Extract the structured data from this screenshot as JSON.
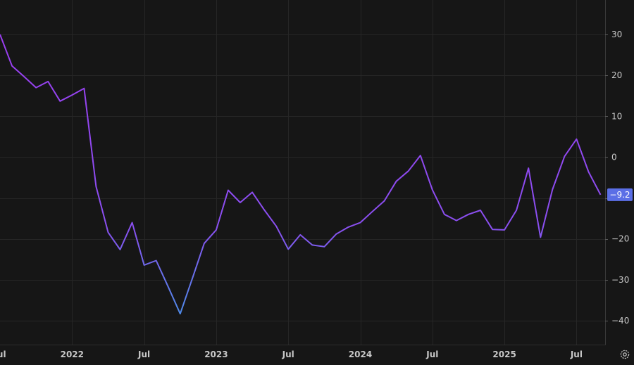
{
  "chart_data": {
    "type": "line",
    "title": "",
    "xlabel": "",
    "ylabel": "",
    "ylim": [
      -45,
      38
    ],
    "y_ticks": [
      30,
      20,
      10,
      0,
      -10,
      -20,
      -30,
      -40
    ],
    "y_tick_labels": [
      "30",
      "20",
      "10",
      "0",
      "",
      "−20",
      "−30",
      "−40"
    ],
    "x_range": [
      "2021-07",
      "2025-09"
    ],
    "x_ticks": [
      {
        "date": "2021-07",
        "label": "Jul"
      },
      {
        "date": "2022-01",
        "label": "2022"
      },
      {
        "date": "2022-07",
        "label": "Jul"
      },
      {
        "date": "2023-01",
        "label": "2023"
      },
      {
        "date": "2023-07",
        "label": "Jul"
      },
      {
        "date": "2024-01",
        "label": "2024"
      },
      {
        "date": "2024-07",
        "label": "Jul"
      },
      {
        "date": "2025-01",
        "label": "2025"
      },
      {
        "date": "2025-07",
        "label": "Jul"
      }
    ],
    "grid": true,
    "y_axis_position": "right",
    "line_gradient": [
      "#9b3df0",
      "#4a8fe8",
      "#8a4ff0"
    ],
    "last_value_color": "#5b6fe6",
    "last_value_label": "−9.2",
    "series": [
      {
        "x": [
          "2021-07",
          "2021-08",
          "2021-09",
          "2021-10",
          "2021-11",
          "2021-12",
          "2022-01",
          "2022-02",
          "2022-03",
          "2022-04",
          "2022-05",
          "2022-06",
          "2022-07",
          "2022-08",
          "2022-09",
          "2022-10",
          "2022-11",
          "2022-12",
          "2023-01",
          "2023-02",
          "2023-03",
          "2023-04",
          "2023-05",
          "2023-06",
          "2023-07",
          "2023-08",
          "2023-09",
          "2023-10",
          "2023-11",
          "2023-12",
          "2024-01",
          "2024-02",
          "2024-03",
          "2024-04",
          "2024-05",
          "2024-06",
          "2024-07",
          "2024-08",
          "2024-09",
          "2024-10",
          "2024-11",
          "2024-12",
          "2025-01",
          "2025-02",
          "2025-03",
          "2025-04",
          "2025-05",
          "2025-06",
          "2025-07",
          "2025-08",
          "2025-09"
        ],
        "values": [
          30,
          22.3,
          19.7,
          17.0,
          18.5,
          13.7,
          15.2,
          16.8,
          -7.2,
          -18.4,
          -22.6,
          -16.0,
          -26.4,
          -25.3,
          -31.7,
          -38.3,
          -29.8,
          -21.1,
          -17.8,
          -8.1,
          -11.1,
          -8.6,
          -12.9,
          -16.9,
          -22.5,
          -19.0,
          -21.5,
          -21.9,
          -18.8,
          -17.1,
          -16.0,
          -13.3,
          -10.7,
          -5.9,
          -3.4,
          0.4,
          -8.0,
          -14.0,
          -15.5,
          -14.0,
          -13.0,
          -17.7,
          -17.8,
          -13.0,
          -2.7,
          -19.6,
          -7.9,
          0.2,
          4.4,
          -3.6,
          -9.2
        ]
      }
    ]
  },
  "settings_icon": "gear-icon"
}
